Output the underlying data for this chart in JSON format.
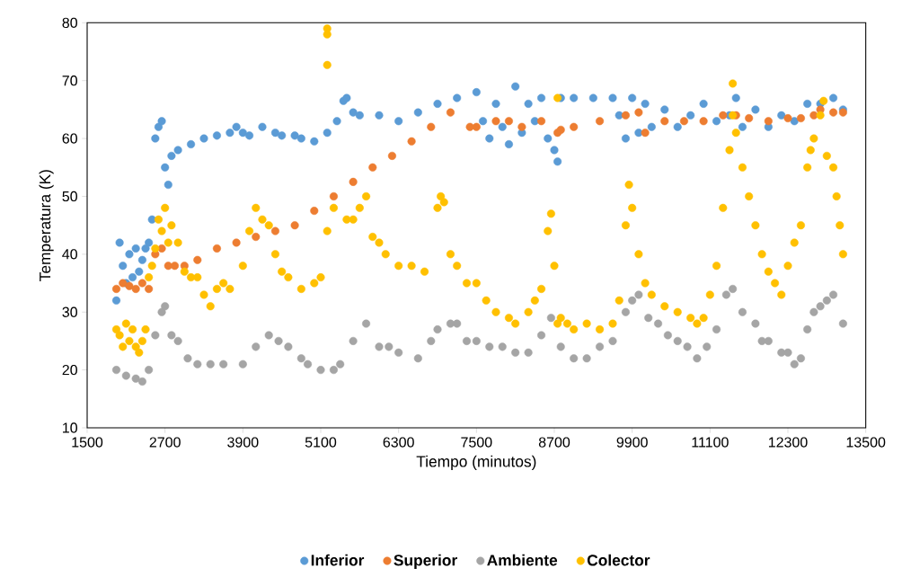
{
  "chart_data": {
    "type": "scatter",
    "xlabel": "Tiempo (minutos)",
    "ylabel": "Temperatura (K)",
    "xlim": [
      1500,
      13500
    ],
    "ylim": [
      10,
      80
    ],
    "xticks": [
      1500,
      2700,
      3900,
      5100,
      6300,
      7500,
      8700,
      9900,
      11100,
      12300,
      13500
    ],
    "yticks": [
      10,
      20,
      30,
      40,
      50,
      60,
      70,
      80
    ],
    "legend": "bottom",
    "marker": "circle",
    "grid": false,
    "series": [
      {
        "name": "Inferior",
        "color": "#5b9bd5",
        "x": [
          1950,
          2000,
          2050,
          2100,
          2150,
          2200,
          2250,
          2300,
          2350,
          2400,
          2450,
          2500,
          2550,
          2600,
          2650,
          2700,
          2750,
          2800,
          2900,
          3100,
          3300,
          3500,
          3700,
          3800,
          3900,
          4000,
          4200,
          4400,
          4500,
          4700,
          4800,
          5000,
          5200,
          5350,
          5450,
          5500,
          5600,
          5700,
          6000,
          6300,
          6600,
          6900,
          7200,
          7500,
          7600,
          7700,
          7800,
          7900,
          8000,
          8100,
          8200,
          8300,
          8400,
          8500,
          8600,
          8700,
          8750,
          8800,
          9000,
          9300,
          9600,
          9700,
          9800,
          9900,
          10000,
          10100,
          10200,
          10400,
          10600,
          10800,
          11000,
          11200,
          11400,
          11500,
          11600,
          11800,
          12000,
          12200,
          12400,
          12600,
          12800,
          13000,
          13150
        ],
        "values": [
          32,
          42,
          38,
          35,
          40,
          36,
          41,
          37,
          39,
          41,
          42,
          46,
          60,
          62,
          63,
          55,
          52,
          57,
          58,
          59,
          60,
          60.5,
          61,
          62,
          61,
          60.5,
          62,
          61,
          60.5,
          60.5,
          60,
          59.5,
          61,
          63,
          66.5,
          67,
          64.5,
          64,
          64,
          63,
          64.5,
          66,
          67,
          68,
          63,
          60,
          66,
          62,
          59,
          69,
          61,
          66,
          63,
          67,
          60,
          58,
          56,
          67,
          67,
          67,
          67,
          64,
          60,
          67,
          61,
          66,
          62,
          65,
          62,
          64,
          66,
          63,
          64,
          67,
          62,
          65,
          62,
          64,
          63,
          66,
          66,
          67,
          65
        ]
      },
      {
        "name": "Superior",
        "color": "#ed7d31",
        "x": [
          1950,
          2050,
          2150,
          2250,
          2350,
          2450,
          2550,
          2650,
          2750,
          2850,
          3000,
          3200,
          3500,
          3800,
          4100,
          4400,
          4700,
          5000,
          5300,
          5600,
          5900,
          6200,
          6500,
          6800,
          7100,
          7400,
          7500,
          7800,
          8000,
          8200,
          8500,
          8750,
          8800,
          9000,
          9400,
          9800,
          10000,
          10100,
          10400,
          10700,
          11000,
          11300,
          11500,
          11700,
          12000,
          12300,
          12500,
          12700,
          12800,
          13000,
          13150
        ],
        "values": [
          34,
          35,
          34.5,
          34,
          35,
          34,
          40,
          41,
          38,
          38,
          38,
          39,
          41,
          42,
          43,
          44,
          45,
          47.5,
          50,
          52.5,
          55,
          57,
          59.5,
          62,
          64.5,
          62,
          62,
          63,
          63,
          62,
          63,
          61,
          61.5,
          62,
          63,
          64,
          64.5,
          61,
          63,
          63,
          63,
          64,
          64,
          63.5,
          63,
          63.5,
          63.5,
          64,
          65,
          64.5,
          64.5
        ]
      },
      {
        "name": "Ambiente",
        "color": "#a5a5a5",
        "x": [
          1950,
          2100,
          2250,
          2350,
          2450,
          2550,
          2650,
          2700,
          2800,
          2900,
          3050,
          3200,
          3400,
          3600,
          3900,
          4100,
          4300,
          4450,
          4600,
          4800,
          4900,
          5100,
          5300,
          5400,
          5600,
          5800,
          6000,
          6150,
          6300,
          6600,
          6800,
          6900,
          7100,
          7200,
          7350,
          7500,
          7700,
          7900,
          8100,
          8300,
          8500,
          8650,
          8800,
          9000,
          9200,
          9400,
          9600,
          9800,
          9900,
          10000,
          10150,
          10300,
          10450,
          10600,
          10750,
          10900,
          11050,
          11200,
          11350,
          11450,
          11600,
          11800,
          11900,
          12000,
          12200,
          12300,
          12400,
          12500,
          12600,
          12700,
          12800,
          12900,
          13000,
          13150
        ],
        "values": [
          20,
          19,
          18.5,
          18,
          20,
          26,
          30,
          31,
          26,
          25,
          22,
          21,
          21,
          21,
          21,
          24,
          26,
          25,
          24,
          22,
          21,
          20,
          20,
          21,
          25,
          28,
          24,
          24,
          23,
          22,
          25,
          27,
          28,
          28,
          25,
          25,
          24,
          24,
          23,
          23,
          26,
          29,
          24,
          22,
          22,
          24,
          25,
          30,
          32,
          33,
          29,
          28,
          26,
          25,
          24,
          22,
          24,
          27,
          33,
          34,
          30,
          28,
          25,
          25,
          23,
          23,
          21,
          22,
          27,
          30,
          31,
          32,
          33,
          28
        ]
      },
      {
        "name": "Colector",
        "color": "#ffc000",
        "x": [
          1950,
          2000,
          2050,
          2100,
          2150,
          2200,
          2250,
          2300,
          2350,
          2400,
          2450,
          2500,
          2550,
          2600,
          2650,
          2700,
          2750,
          2800,
          2900,
          3000,
          3100,
          3200,
          3300,
          3400,
          3500,
          3600,
          3700,
          3900,
          4000,
          4100,
          4200,
          4300,
          4400,
          4500,
          4600,
          4800,
          5000,
          5100,
          5200,
          5200,
          5200,
          5200,
          5300,
          5500,
          5600,
          5700,
          5800,
          5900,
          6000,
          6100,
          6300,
          6500,
          6700,
          6900,
          6950,
          7000,
          7100,
          7200,
          7350,
          7500,
          7650,
          7800,
          8000,
          8100,
          8300,
          8400,
          8500,
          8600,
          8650,
          8700,
          8750,
          8750,
          8800,
          8900,
          9000,
          9200,
          9400,
          9600,
          9700,
          9800,
          9850,
          9900,
          10000,
          10100,
          10200,
          10400,
          10600,
          10800,
          10900,
          11000,
          11100,
          11200,
          11300,
          11400,
          11450,
          11450,
          11500,
          11600,
          11700,
          11800,
          11900,
          12000,
          12100,
          12200,
          12300,
          12400,
          12500,
          12600,
          12650,
          12700,
          12800,
          12850,
          12900,
          13000,
          13050,
          13100,
          13150
        ],
        "values": [
          27,
          26,
          24,
          28,
          25,
          27,
          24,
          23,
          25,
          27,
          36,
          38,
          41,
          46,
          44,
          48,
          42,
          45,
          42,
          37,
          36,
          36,
          33,
          31,
          34,
          35,
          34,
          38,
          44,
          48,
          46,
          45,
          40,
          37,
          36,
          34,
          35,
          36,
          44,
          79,
          78,
          72.7,
          48,
          46,
          46,
          48,
          50,
          43,
          42,
          40,
          38,
          38,
          37,
          48,
          50,
          49,
          40,
          38,
          35,
          35,
          32,
          30,
          29,
          28,
          30,
          32,
          34,
          44,
          47,
          38,
          67,
          28,
          29,
          28,
          27,
          28,
          27,
          28,
          32,
          45,
          52,
          48,
          40,
          35,
          33,
          31,
          30,
          29,
          28,
          29,
          33,
          38,
          48,
          58,
          64,
          69.5,
          61,
          55,
          50,
          45,
          40,
          37,
          35,
          33,
          38,
          42,
          45,
          55,
          58,
          60,
          64,
          66.5,
          57,
          55,
          50,
          45,
          40
        ]
      }
    ]
  }
}
